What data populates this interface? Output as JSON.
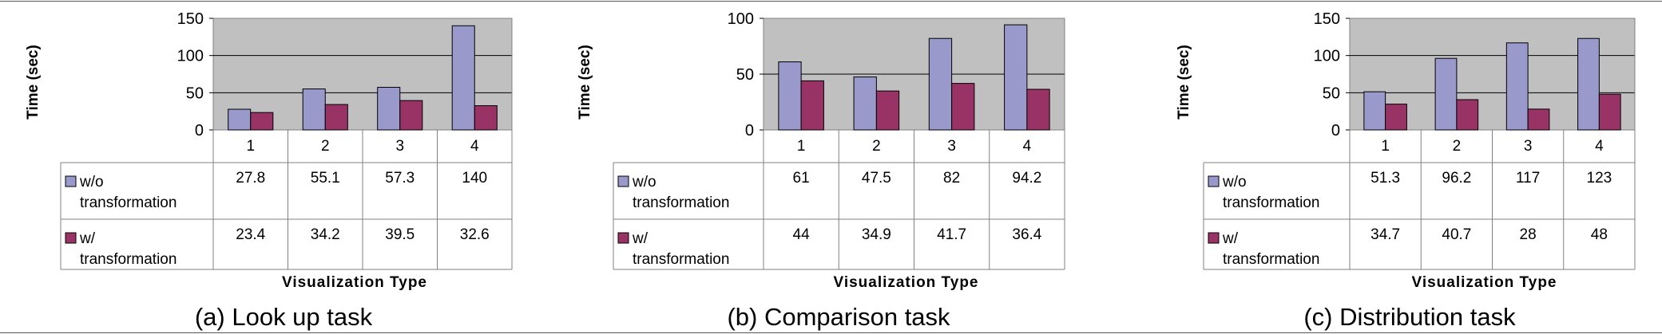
{
  "chart_data": [
    {
      "type": "bar",
      "title": "(a) Look up task",
      "xlabel": "Visualization Type",
      "ylabel": "Time (sec)",
      "ylim": [
        0,
        150
      ],
      "yticks": [
        0,
        50,
        100,
        150
      ],
      "categories": [
        "1",
        "2",
        "3",
        "4"
      ],
      "series": [
        {
          "name_lines": [
            "w/o",
            "transformation"
          ],
          "values": [
            27.8,
            55.1,
            57.3,
            140
          ],
          "labels": [
            "27.8",
            "55.1",
            "57.3",
            "140"
          ],
          "color": "#9999cc"
        },
        {
          "name_lines": [
            "w/",
            "transformation"
          ],
          "values": [
            23.4,
            34.2,
            39.5,
            32.6
          ],
          "labels": [
            "23.4",
            "34.2",
            "39.5",
            "32.6"
          ],
          "color": "#993366"
        }
      ],
      "grid": true,
      "plot_background": "#c0c0c0",
      "legend": "data table below plot"
    },
    {
      "type": "bar",
      "title": "(b) Comparison task",
      "xlabel": "Visualization Type",
      "ylabel": "Time (sec)",
      "ylim": [
        0,
        100
      ],
      "yticks": [
        0,
        50,
        100
      ],
      "categories": [
        "1",
        "2",
        "3",
        "4"
      ],
      "series": [
        {
          "name_lines": [
            "w/o",
            "transformation"
          ],
          "values": [
            61,
            47.5,
            82,
            94.2
          ],
          "labels": [
            "61",
            "47.5",
            "82",
            "94.2"
          ],
          "color": "#9999cc"
        },
        {
          "name_lines": [
            "w/",
            "transformation"
          ],
          "values": [
            44,
            34.9,
            41.7,
            36.4
          ],
          "labels": [
            "44",
            "34.9",
            "41.7",
            "36.4"
          ],
          "color": "#993366"
        }
      ],
      "grid": true,
      "plot_background": "#c0c0c0",
      "legend": "data table below plot"
    },
    {
      "type": "bar",
      "title": "(c) Distribution task",
      "xlabel": "Visualization Type",
      "ylabel": "Time (sec)",
      "ylim": [
        0,
        150
      ],
      "yticks": [
        0,
        50,
        100,
        150
      ],
      "categories": [
        "1",
        "2",
        "3",
        "4"
      ],
      "series": [
        {
          "name_lines": [
            "w/o",
            "transformation"
          ],
          "values": [
            51.3,
            96.2,
            117,
            123
          ],
          "labels": [
            "51.3",
            "96.2",
            "117",
            "123"
          ],
          "color": "#9999cc"
        },
        {
          "name_lines": [
            "w/",
            "transformation"
          ],
          "values": [
            34.7,
            40.7,
            28,
            48
          ],
          "labels": [
            "34.7",
            "40.7",
            "28",
            "48"
          ],
          "color": "#993366"
        }
      ],
      "grid": true,
      "plot_background": "#c0c0c0",
      "legend": "data table below plot"
    }
  ]
}
